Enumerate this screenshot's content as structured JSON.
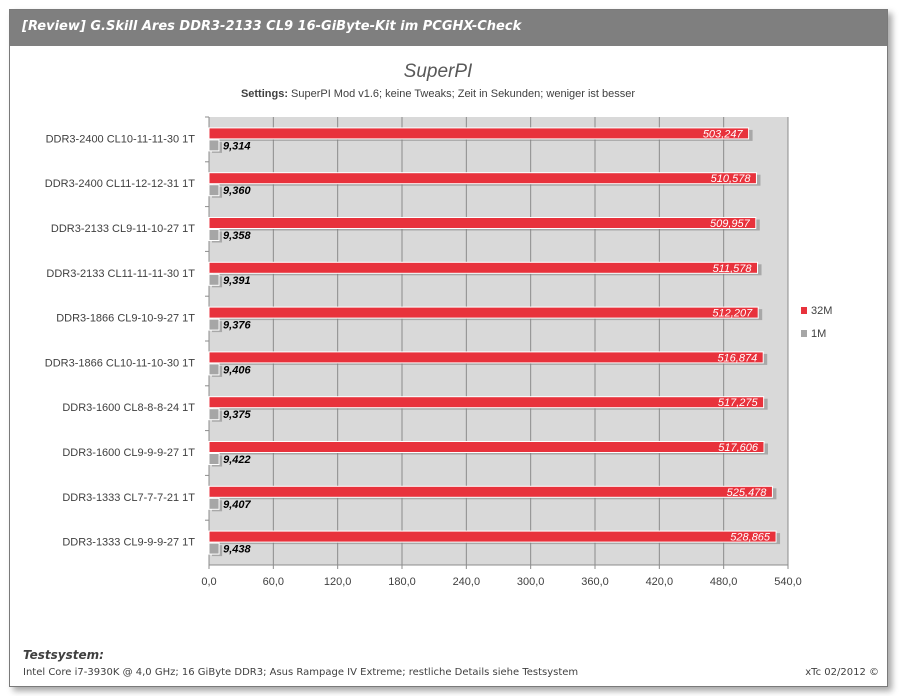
{
  "header": {
    "title": "[Review] G.Skill Ares DDR3-2133 CL9 16-GiByte-Kit im PCGHX-Check"
  },
  "chart_data": {
    "type": "bar",
    "orientation": "horizontal",
    "title": "SuperPI",
    "subtitle_label": "Settings:",
    "subtitle": "SuperPI Mod v1.6; keine Tweaks; Zeit in Sekunden;  weniger ist besser",
    "categories": [
      "DDR3-2400 CL10-11-11-30 1T",
      "DDR3-2400 CL11-12-12-31 1T",
      "DDR3-2133 CL9-11-10-27 1T",
      "DDR3-2133 CL11-11-11-30 1T",
      "DDR3-1866 CL9-10-9-27 1T",
      "DDR3-1866 CL10-11-10-30 1T",
      "DDR3-1600 CL8-8-8-24 1T",
      "DDR3-1600 CL9-9-9-27 1T",
      "DDR3-1333 CL7-7-7-21 1T",
      "DDR3-1333 CL9-9-9-27 1T"
    ],
    "series": [
      {
        "name": "32M",
        "color": "#e8323c",
        "values": [
          503.247,
          510.578,
          509.957,
          511.578,
          512.207,
          516.874,
          517.275,
          517.606,
          525.478,
          528.865
        ],
        "labels": [
          "503,247",
          "510,578",
          "509,957",
          "511,578",
          "512,207",
          "516,874",
          "517,275",
          "517,606",
          "525,478",
          "528,865"
        ]
      },
      {
        "name": "1M",
        "color": "#a6a6a6",
        "values": [
          9.314,
          9.36,
          9.358,
          9.391,
          9.376,
          9.406,
          9.375,
          9.422,
          9.407,
          9.438
        ],
        "labels": [
          "9,314",
          "9,360",
          "9,358",
          "9,391",
          "9,376",
          "9,406",
          "9,375",
          "9,422",
          "9,407",
          "9,438"
        ]
      }
    ],
    "xlim": [
      0,
      540
    ],
    "xticks": [
      "0,0",
      "60,0",
      "120,0",
      "180,0",
      "240,0",
      "300,0",
      "360,0",
      "420,0",
      "480,0",
      "540,0"
    ],
    "grid": true,
    "legend_position": "right"
  },
  "footer": {
    "label": "Testsystem:",
    "text": "Intel Core i7-3930K @ 4,0 GHz; 16 GiByte DDR3; Asus Rampage IV Extreme;  restliche Details siehe Testsystem",
    "credit": "xTc 02/2012 ©"
  }
}
